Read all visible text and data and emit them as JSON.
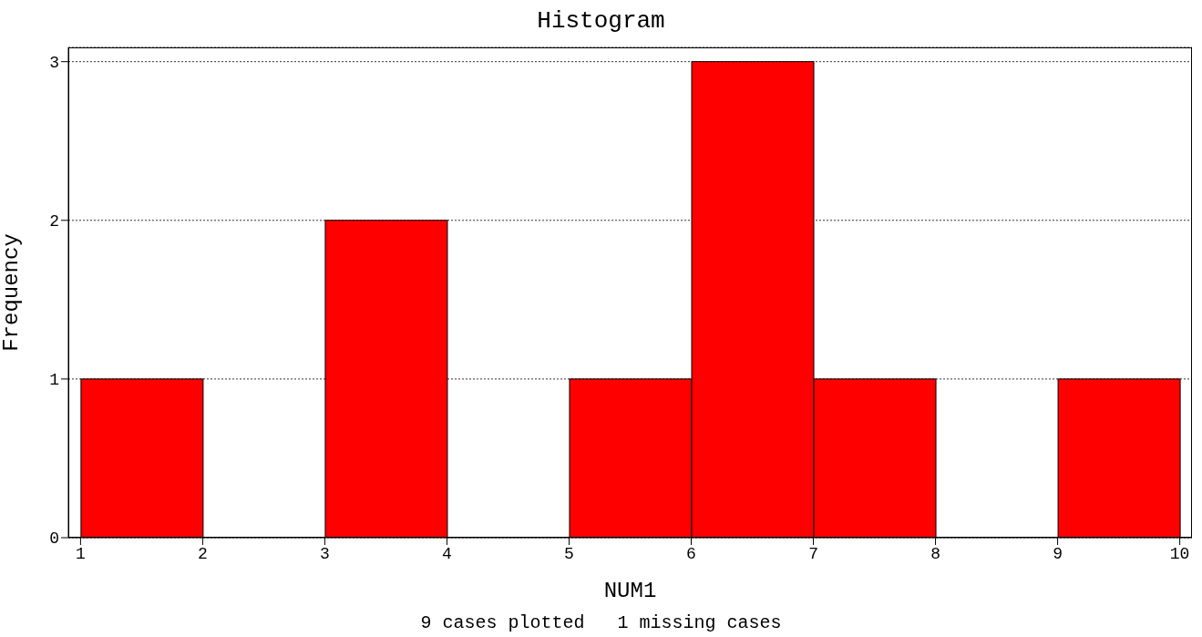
{
  "chart_data": {
    "type": "histogram",
    "title": "Histogram",
    "xlabel": "NUM1",
    "ylabel": "Frequency",
    "bins": [
      1,
      2,
      3,
      4,
      5,
      6,
      7,
      8,
      9,
      10
    ],
    "values": [
      1,
      0,
      2,
      0,
      1,
      3,
      1,
      0,
      1
    ],
    "color": "#ff0000",
    "xlim": [
      0.9,
      10.1
    ],
    "xticks": [
      1,
      2,
      3,
      4,
      5,
      6,
      7,
      8,
      9,
      10
    ],
    "ylim": [
      0,
      3.09
    ],
    "yticks": [
      0,
      1,
      2,
      3
    ],
    "grid": "y",
    "annotations": [
      "9 cases plotted   1 missing cases"
    ]
  }
}
